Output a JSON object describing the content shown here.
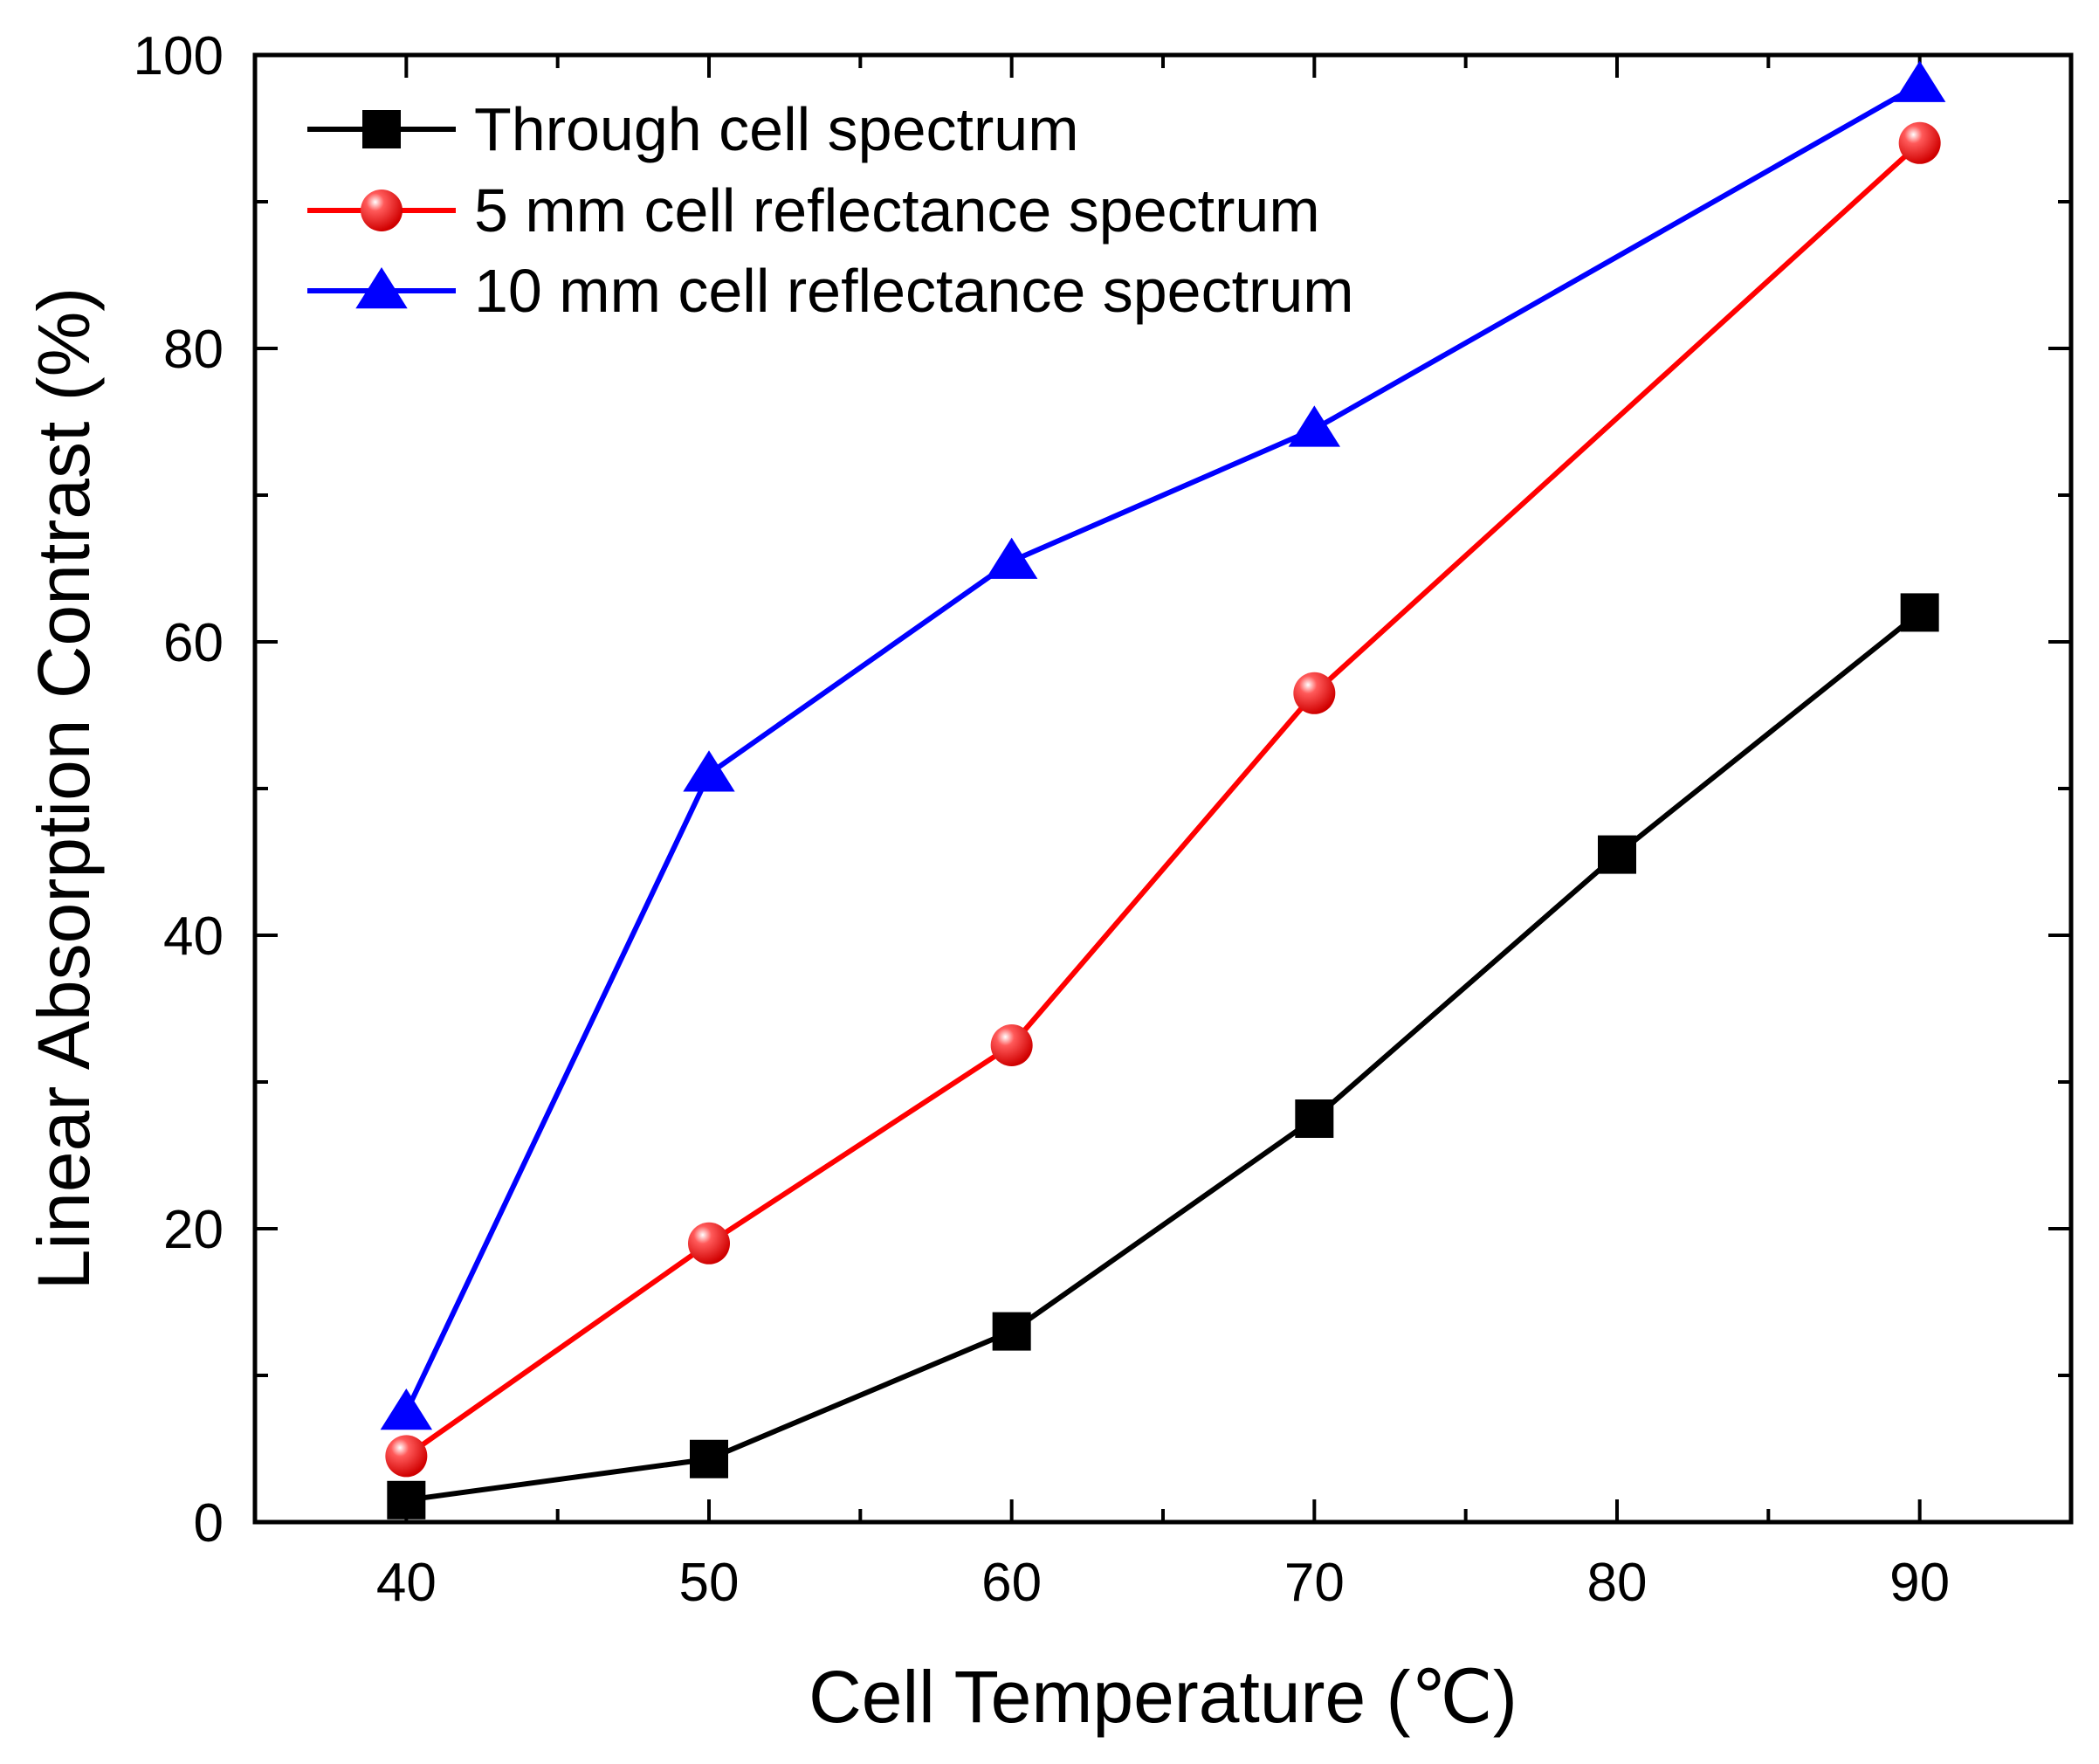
{
  "chart_data": {
    "type": "line",
    "title": "",
    "xlabel": "Cell Temperature (℃)",
    "ylabel": "Linear Absorption Contrast (%)",
    "xlim": [
      35,
      95
    ],
    "ylim": [
      0,
      100
    ],
    "xticks": [
      40,
      50,
      60,
      70,
      80,
      90
    ],
    "yticks": [
      0,
      20,
      40,
      60,
      80,
      100
    ],
    "legend_position": "top-left",
    "series": [
      {
        "name": "Through cell spectrum",
        "marker": "square",
        "color": "#000000",
        "x": [
          40,
          50,
          60,
          70,
          80,
          90
        ],
        "y": [
          1.5,
          4.3,
          13.0,
          27.5,
          45.5,
          62.0
        ]
      },
      {
        "name": "5 mm cell reflectance spectrum",
        "marker": "circle",
        "color": "#ff0000",
        "x": [
          40,
          50,
          60,
          70,
          90
        ],
        "y": [
          4.5,
          19.0,
          32.5,
          56.5,
          94.0
        ]
      },
      {
        "name": "10 mm cell reflectance spectrum",
        "marker": "triangle",
        "color": "#0000ff",
        "x": [
          40,
          50,
          60,
          70,
          90
        ],
        "y": [
          7.5,
          51.0,
          65.5,
          74.5,
          98.0
        ]
      }
    ]
  }
}
